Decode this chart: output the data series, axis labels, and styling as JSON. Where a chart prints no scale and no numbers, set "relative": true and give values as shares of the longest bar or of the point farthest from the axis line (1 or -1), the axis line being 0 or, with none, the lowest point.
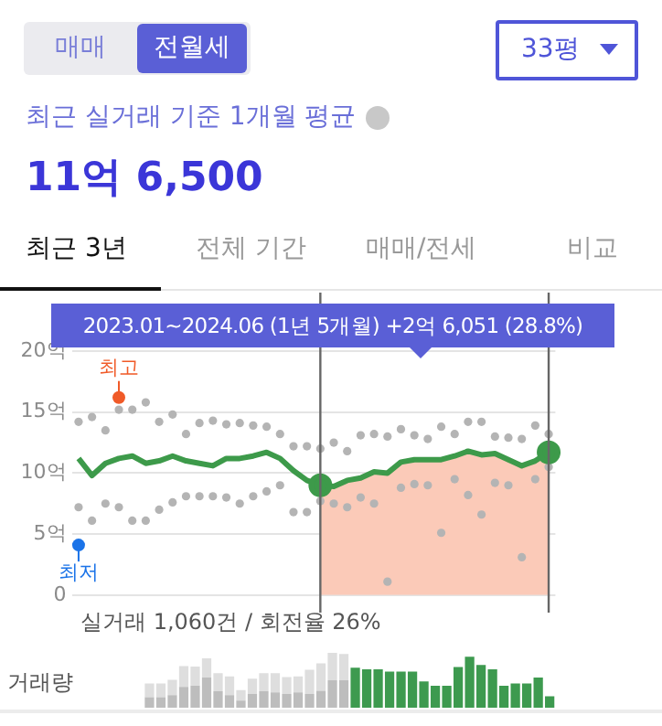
{
  "chart_data": [
    {
      "type": "other",
      "title": "최근 실거래 기준 1개월 평균",
      "annotations": [
        "매매",
        "전월세",
        "33평",
        "11억 6,500",
        "최근 3년",
        "전체 기간",
        "매매/전세",
        "비교"
      ]
    },
    {
      "type": "line",
      "categories": [
        null,
        null,
        null,
        null,
        null,
        null,
        null,
        null,
        null,
        null,
        null,
        null,
        null,
        null,
        null,
        null,
        null,
        null,
        null,
        null,
        null,
        null,
        null,
        null,
        null,
        null,
        null,
        null,
        null,
        null,
        null,
        null,
        null,
        null,
        null,
        null
      ],
      "ylim": [
        0,
        20
      ],
      "yticks": [
        {
          "value": 0,
          "label": "0"
        },
        {
          "value": 5,
          "label": "5억"
        },
        {
          "value": 10,
          "label": "10억"
        },
        {
          "value": 15,
          "label": "15억"
        },
        {
          "value": 20,
          "label": "20억"
        }
      ],
      "grid": "y",
      "legend": "bottom left",
      "tick_labels": "y",
      "annotations": [
        "2023.01~2024.06 (1년 5개월)  +2억 6,051 (28.8%)",
        "실거래 1,060건 / 회전율 26%"
      ],
      "series": [
        {
          "type": "area",
          "color": "#fbcab8",
          "values": [
            null,
            null,
            null,
            null,
            null,
            null,
            null,
            null,
            null,
            null,
            null,
            null,
            null,
            null,
            null,
            null,
            null,
            null,
            9.0,
            8.9,
            9.4,
            9.6,
            10.1,
            10.0,
            10.9,
            11.1,
            11.1,
            11.1,
            11.4,
            11.8,
            11.5,
            11.6,
            11.1,
            10.6,
            11.0,
            11.7
          ]
        },
        {
          "type": "scatter",
          "color": "#b4b4b4",
          "values": [
            14.2,
            14.6,
            13.5,
            15.2,
            15.2,
            15.8,
            14.2,
            14.8,
            13.2,
            14.1,
            14.3,
            14.0,
            14.1,
            13.9,
            13.8,
            13.2,
            12.2,
            12.2,
            12.0,
            12.5,
            11.8,
            13.1,
            13.2,
            13.0,
            13.6,
            13.1,
            12.8,
            13.8,
            13.2,
            14.2,
            14.2,
            13.0,
            12.9,
            12.8,
            13.9,
            13.2
          ]
        },
        {
          "type": "scatter",
          "color": "#b4b4b4",
          "values": [
            7.2,
            6.1,
            7.5,
            7.2,
            6.1,
            6.1,
            7.0,
            7.6,
            8.1,
            8.1,
            8.1,
            8.0,
            7.5,
            8.1,
            8.5,
            9.0,
            6.8,
            6.8,
            7.7,
            7.5,
            7.2,
            8.0,
            7.5,
            1.1,
            8.8,
            9.1,
            9.0,
            5.1,
            9.5,
            8.2,
            6.6,
            9.2,
            9.0,
            3.1,
            9.5,
            10.5
          ]
        },
        {
          "type": "line",
          "color": "#3d9a4a",
          "values": [
            11.2,
            9.8,
            10.8,
            11.2,
            11.4,
            10.8,
            11.0,
            11.4,
            11.0,
            10.8,
            10.6,
            11.2,
            11.2,
            11.4,
            11.7,
            11.2,
            10.2,
            9.4,
            9.0,
            8.9,
            9.4,
            9.6,
            10.1,
            10.0,
            10.9,
            11.1,
            11.1,
            11.1,
            11.4,
            11.8,
            11.5,
            11.6,
            11.1,
            10.6,
            11.0,
            11.7
          ]
        },
        {
          "type": "scatter",
          "name": "최고",
          "color": "#f05a28",
          "values": [
            null,
            null,
            null,
            16.2,
            null,
            null,
            null,
            null,
            null,
            null,
            null,
            null,
            null,
            null,
            null,
            null,
            null,
            null,
            null,
            null,
            null,
            null,
            null,
            null,
            null,
            null,
            null,
            null,
            null,
            null,
            null,
            null,
            null,
            null,
            null,
            null
          ]
        },
        {
          "type": "scatter",
          "name": "최저",
          "color": "#1a73e8",
          "values": [
            4.1,
            null,
            null,
            null,
            null,
            null,
            null,
            null,
            null,
            null,
            null,
            null,
            null,
            null,
            null,
            null,
            null,
            null,
            null,
            null,
            null,
            null,
            null,
            null,
            null,
            null,
            null,
            null,
            null,
            null,
            null,
            null,
            null,
            null,
            null,
            null
          ]
        }
      ]
    },
    {
      "type": "bar",
      "stacked": true,
      "relative": true,
      "ylabel": "거래량",
      "legend": false,
      "tick_labels": false,
      "categories": [
        null,
        null,
        null,
        null,
        null,
        null,
        null,
        null,
        null,
        null,
        null,
        null,
        null,
        null,
        null,
        null,
        null,
        null,
        null,
        null,
        null,
        null,
        null,
        null,
        null,
        null,
        null,
        null,
        null,
        null,
        null,
        null,
        null,
        null,
        null,
        null
      ],
      "series": [
        {
          "color": "#bdbdbd",
          "values": [
            0.19,
            0.19,
            0.23,
            0.38,
            0.4,
            0.55,
            0.3,
            0.23,
            0.13,
            0.25,
            0.3,
            0.28,
            0.25,
            0.28,
            0.25,
            0.31,
            0.5,
            0.5,
            null,
            null,
            null,
            null,
            null,
            null,
            null,
            null,
            null,
            null,
            null,
            null,
            null,
            null,
            null,
            null,
            null,
            null
          ]
        },
        {
          "color": "#dedede",
          "values": [
            0.25,
            0.25,
            0.28,
            0.38,
            0.35,
            0.35,
            0.33,
            0.34,
            0.19,
            0.28,
            0.33,
            0.35,
            0.31,
            0.29,
            0.44,
            0.5,
            0.5,
            0.48,
            null,
            null,
            null,
            null,
            null,
            null,
            null,
            null,
            null,
            null,
            null,
            null,
            null,
            null,
            null,
            null,
            null,
            null
          ]
        },
        {
          "color": "#3d9a4f",
          "values": [
            null,
            null,
            null,
            null,
            null,
            null,
            null,
            null,
            null,
            null,
            null,
            null,
            null,
            null,
            null,
            null,
            null,
            null,
            0.73,
            0.7,
            0.7,
            0.66,
            0.66,
            0.66,
            0.48,
            0.4,
            0.4,
            0.74,
            0.93,
            0.78,
            0.7,
            0.4,
            0.44,
            0.44,
            0.55,
            0.21
          ]
        }
      ]
    }
  ]
}
